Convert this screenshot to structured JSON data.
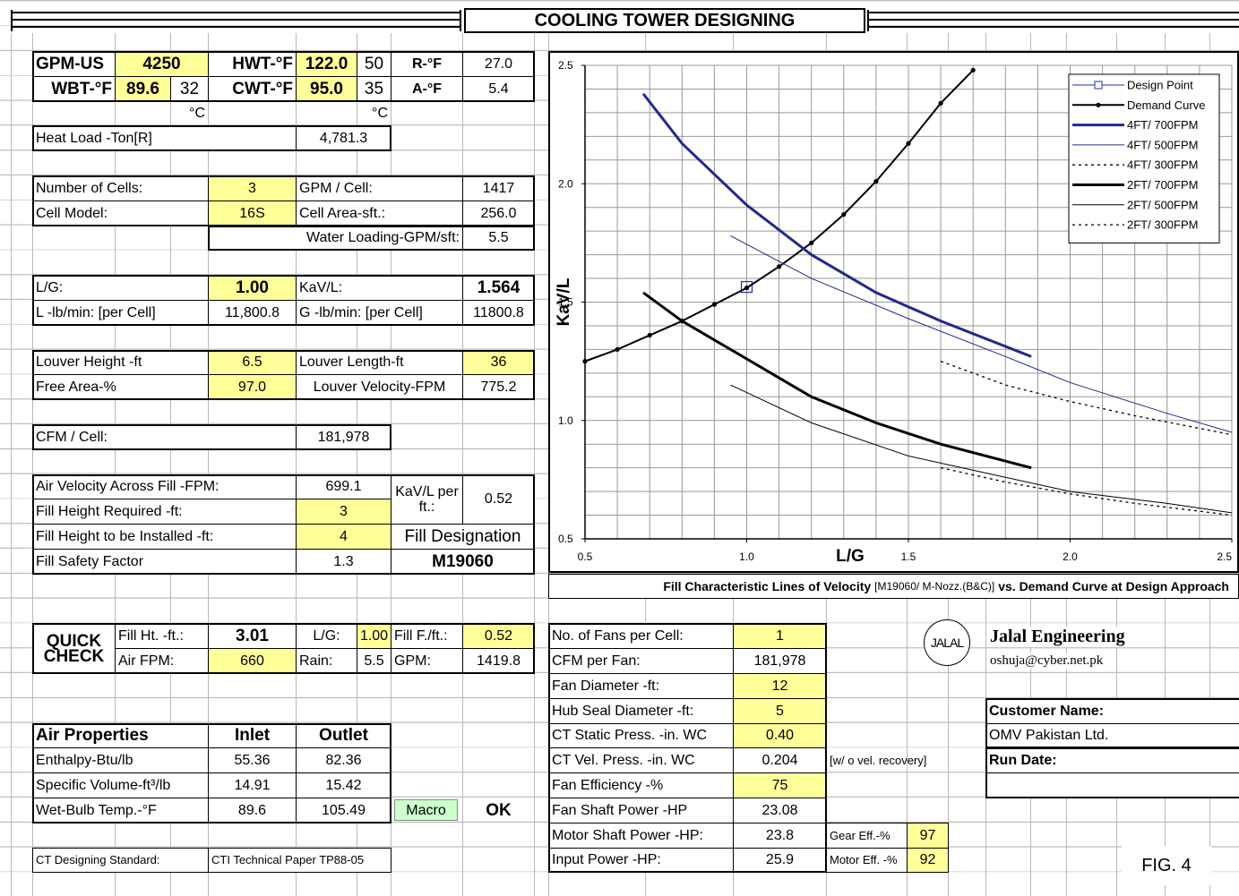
{
  "header": {
    "title": "COOLING TOWER DESIGNING"
  },
  "design": {
    "rows": [
      [
        "GPM-US",
        "4250",
        "HWT-°F",
        "122.0",
        "50",
        "R-°F",
        "27.0"
      ],
      [
        "WBT-°F",
        "89.6",
        "32",
        "CWT-°F",
        "95.0",
        "35",
        "A-°F",
        "5.4"
      ],
      [
        "°C",
        "°C"
      ],
      [
        "Heat Load -Ton[R]",
        "4,781.3"
      ]
    ]
  },
  "cells": {
    "rows": [
      [
        "Number of Cells:",
        "3",
        "GPM / Cell:",
        "1417"
      ],
      [
        "Cell Model:",
        "16S",
        "Cell Area-sft.:",
        "256.0"
      ],
      [
        "Water Loading-GPM/sft:",
        "5.5"
      ]
    ]
  },
  "flow": {
    "rows": [
      [
        "L/G:",
        "1.00",
        "KaV/L:",
        "1.564"
      ],
      [
        "L -lb/min: [per Cell]",
        "11,800.8",
        "G -lb/min: [per Cell]",
        "11800.8"
      ]
    ]
  },
  "louver": {
    "rows": [
      [
        "Louver Height -ft",
        "6.5",
        "Louver Length-ft",
        "36"
      ],
      [
        "Free Area-%",
        "97.0",
        "Louver Velocity-FPM",
        "775.2"
      ]
    ]
  },
  "cfm": {
    "rows": [
      [
        "CFM / Cell:",
        "181,978"
      ]
    ]
  },
  "fill": {
    "rows": [
      [
        "Air Velocity Across Fill -FPM:",
        "699.1",
        "KaV/L per ft.:",
        "0.52"
      ],
      [
        "Fill Height Required -ft:",
        "3"
      ],
      [
        "Fill Height to be Installed -ft:",
        "4",
        "Fill Designation"
      ],
      [
        "Fill Safety Factor",
        "1.3",
        "M19060"
      ]
    ]
  },
  "quick_check": {
    "title": "QUICK CHECK",
    "rows": [
      [
        "Fill Ht. -ft.:",
        "3.01",
        "L/G:",
        "1.00",
        "Fill F./ft.:",
        "0.52"
      ],
      [
        "Air FPM:",
        "660",
        "Rain:",
        "5.5",
        "GPM:",
        "1419.8"
      ]
    ]
  },
  "air_properties": {
    "header": [
      "Air Properties",
      "Inlet",
      "Outlet"
    ],
    "rows": [
      [
        "Enthalpy-Btu/lb",
        "55.36",
        "82.36"
      ],
      [
        "Specific Volume-ft³/lb",
        "14.91",
        "15.42"
      ],
      [
        "Wet-Bulb Temp.-°F",
        "89.6",
        "105.49"
      ]
    ]
  },
  "buttons": {
    "macro": "Macro",
    "ok": "OK"
  },
  "standard": [
    "CT Designing Standard:",
    "CTI Technical Paper TP88-05"
  ],
  "fans": {
    "rows": [
      [
        "No. of Fans per Cell:",
        "1"
      ],
      [
        "CFM per Fan:",
        "181,978"
      ],
      [
        "Fan Diameter -ft:",
        "12"
      ],
      [
        "Hub Seal Diameter -ft:",
        "5"
      ],
      [
        "CT Static Press. -in. WC",
        "0.40"
      ],
      [
        "CT Vel. Press. -in. WC",
        "0.204",
        "[w/ o vel. recovery]"
      ],
      [
        "Fan Efficiency -%",
        "75"
      ],
      [
        "Fan Shaft Power -HP",
        "23.08"
      ],
      [
        "Motor Shaft Power -HP:",
        "23.8",
        "Gear Eff.-%",
        "97"
      ],
      [
        "Input Power -HP:",
        "25.9",
        "Motor Eff. -%",
        "92"
      ]
    ]
  },
  "company": {
    "logo": "JALAL",
    "name": "Jalal Engineering",
    "email": "oshuja@cyber.net.pk"
  },
  "customer": {
    "name_label": "Customer Name:",
    "name": "OMV Pakistan Ltd.",
    "date_label": "Run Date:"
  },
  "figure_label": "FIG. 4",
  "chart_data": {
    "type": "line",
    "caption": [
      "Fill Characteristic Lines of Velocity",
      "[M19060/ M-Nozz.(B&C)]",
      "vs. Demand Curve at Design Approach"
    ],
    "xlabel": "L/G",
    "ylabel": "KaV/L",
    "xlim": [
      0.5,
      2.5
    ],
    "ylim": [
      0.5,
      2.5
    ],
    "xticks": [
      0.5,
      {
        "value": 1,
        "label": "1.0"
      },
      1.5,
      {
        "value": 2,
        "label": "2.0"
      },
      2.5
    ],
    "yticks": [
      0.5,
      {
        "value": 1,
        "label": "1.0"
      },
      1.5,
      {
        "value": 2,
        "label": "2.0"
      },
      2.5
    ],
    "xminor": [
      0.6,
      0.7,
      0.8,
      0.9,
      1.1,
      1.2,
      1.3,
      1.4,
      1.6,
      1.7,
      1.8,
      1.9,
      2.1,
      2.2,
      2.3,
      2.4
    ],
    "yminor": [
      0.6,
      0.7,
      0.8,
      0.9,
      1.1,
      1.2,
      1.3,
      1.4,
      1.6,
      1.7,
      1.8,
      1.9,
      2.1,
      2.2,
      2.3,
      2.4
    ],
    "grid": true,
    "legend": "upper right",
    "series": [
      {
        "name": "Design Point",
        "color": "#1f2fa8",
        "line_width": 0,
        "marker": "square",
        "x": [
          1.0
        ],
        "values": [
          1.564
        ]
      },
      {
        "name": "Demand Curve",
        "color": "#000000",
        "line_width": 2,
        "marker": "dot",
        "x": [
          0.5,
          0.6,
          0.7,
          0.8,
          0.9,
          1.0,
          1.1,
          1.2,
          1.3,
          1.4,
          1.5,
          1.6,
          1.7
        ],
        "values": [
          1.25,
          1.3,
          1.36,
          1.42,
          1.49,
          1.56,
          1.65,
          1.75,
          1.87,
          2.01,
          2.17,
          2.34,
          2.48
        ]
      },
      {
        "name": "4FT/ 700FPM",
        "color": "#1f2a8c",
        "line_width": 3,
        "x": [
          0.68,
          0.8,
          1.0,
          1.2,
          1.4,
          1.6,
          1.88
        ],
        "values": [
          2.38,
          2.17,
          1.91,
          1.7,
          1.54,
          1.42,
          1.27
        ]
      },
      {
        "name": "4FT/ 500FPM",
        "color": "#1f2a8c",
        "line_width": 1,
        "x": [
          0.95,
          1.2,
          1.5,
          1.8,
          2.0,
          2.3,
          2.5
        ],
        "values": [
          1.78,
          1.6,
          1.43,
          1.27,
          1.16,
          1.03,
          0.95
        ]
      },
      {
        "name": "4FT/ 300FPM",
        "color": "#000000",
        "line_width": 1.3,
        "dash": true,
        "x": [
          1.6,
          1.8,
          2.0,
          2.2,
          2.5
        ],
        "values": [
          1.25,
          1.15,
          1.08,
          1.02,
          0.94
        ]
      },
      {
        "name": "2FT/ 700FPM",
        "color": "#000000",
        "line_width": 3,
        "x": [
          0.68,
          0.8,
          1.0,
          1.2,
          1.4,
          1.6,
          1.88
        ],
        "values": [
          1.54,
          1.42,
          1.26,
          1.1,
          0.99,
          0.9,
          0.8
        ]
      },
      {
        "name": "2FT/ 500FPM",
        "color": "#000000",
        "line_width": 1,
        "x": [
          0.95,
          1.2,
          1.5,
          1.8,
          2.0,
          2.3,
          2.5
        ],
        "values": [
          1.15,
          0.99,
          0.85,
          0.76,
          0.7,
          0.65,
          0.61
        ]
      },
      {
        "name": "2FT/ 300FPM",
        "color": "#000000",
        "line_width": 1.3,
        "dash": true,
        "x": [
          1.6,
          1.8,
          2.0,
          2.2,
          2.5
        ],
        "values": [
          0.8,
          0.74,
          0.69,
          0.65,
          0.6
        ]
      }
    ]
  }
}
